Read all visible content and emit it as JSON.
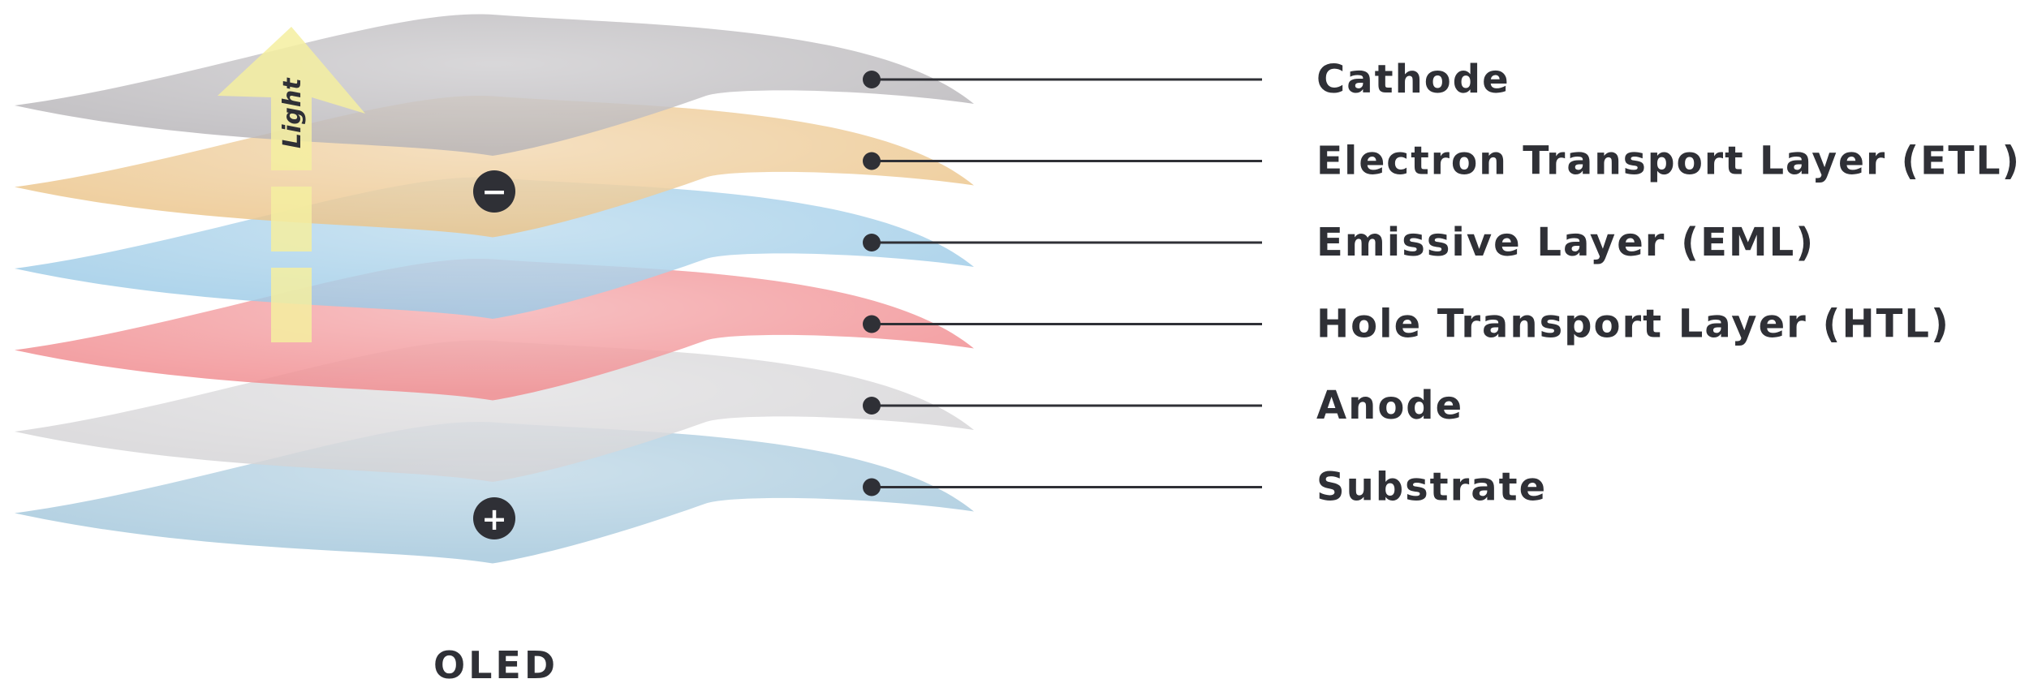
{
  "diagram": {
    "title": "OLED",
    "light_label": "Light",
    "cathode_sign": "−",
    "anode_sign": "+",
    "colors": {
      "text": "#2f3036",
      "line": "#2f3036",
      "arrow": "#f4eea0"
    },
    "layers": [
      {
        "label": "Cathode",
        "color": "#b7b5b8"
      },
      {
        "label": "Electron Transport Layer (ETL)",
        "color": "#ecc48a"
      },
      {
        "label": "Emissive Layer (EML)",
        "color": "#9ccbe6"
      },
      {
        "label": "Hole Transport Layer (HTL)",
        "color": "#f08a8e"
      },
      {
        "label": "Anode",
        "color": "#d4d3d5"
      },
      {
        "label": "Substrate",
        "color": "#a3c7dc"
      }
    ]
  }
}
